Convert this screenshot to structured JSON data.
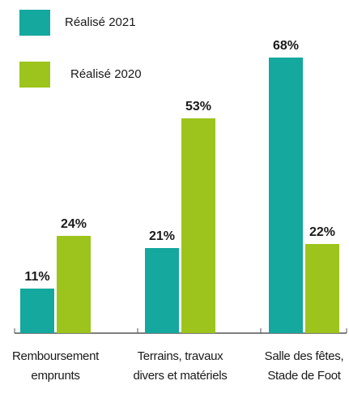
{
  "chart_data": {
    "type": "bar",
    "categories": [
      "Remboursement\nemprunts",
      "Terrains, travaux\ndivers et matériels",
      "Salle des fêtes,\nStade de Foot"
    ],
    "series": [
      {
        "name": "Réalisé 2021",
        "color": "#14a89e",
        "values": [
          11,
          21,
          68
        ],
        "value_labels": [
          "11%",
          "21%",
          "68%"
        ]
      },
      {
        "name": "Réalisé 2020",
        "color": "#9dc41c",
        "values": [
          24,
          53,
          22
        ],
        "value_labels": [
          "24%",
          "53%",
          "22%"
        ]
      }
    ],
    "ylim": [
      0,
      70
    ]
  }
}
